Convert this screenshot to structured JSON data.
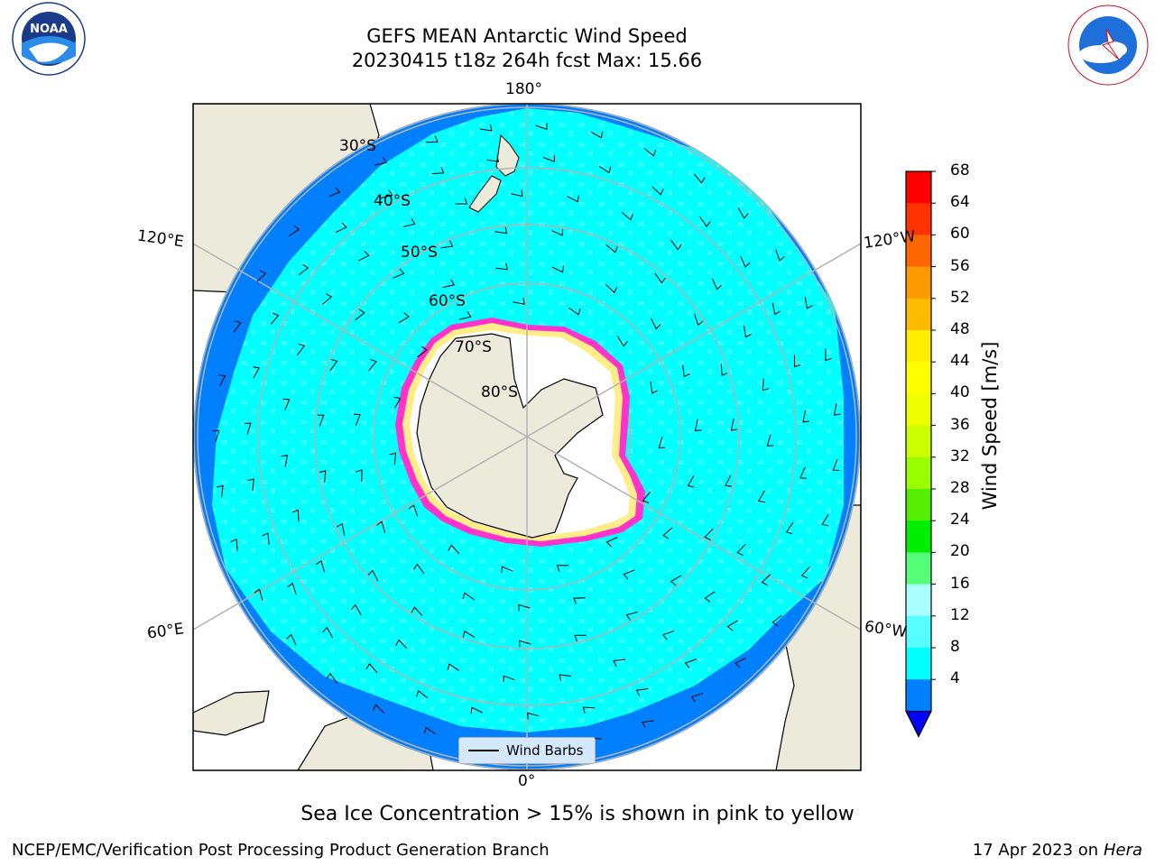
{
  "title": {
    "line1": "GEFS MEAN Antarctic Wind Speed",
    "line2": "20230415 t18z 264h fcst   Max: 15.66"
  },
  "logos": {
    "left": "NOAA",
    "right": "NATIONAL WEATHER SERVICE"
  },
  "map": {
    "projection": "South Polar Stereographic",
    "lon_labels": {
      "top": "180°",
      "bottom": "0°",
      "left_upper": "120°E",
      "left_lower": "60°E",
      "right_upper": "120°W",
      "right_lower": "60°W"
    },
    "lat_labels": [
      "30°S",
      "40°S",
      "50°S",
      "60°S",
      "70°S",
      "80°S"
    ],
    "legend_label": "Wind Barbs",
    "colors": {
      "land": "#ebeadb",
      "ice": "#ffffff",
      "ice_edge": "#ff33cc",
      "ocean_low": "#0080ff",
      "ocean_mid": "#00ffff",
      "ocean_high": "#55ffff",
      "graticule": "#b3b3b3"
    }
  },
  "colorbar": {
    "label": "Wind Speed [m/s]",
    "ticks": [
      "68",
      "64",
      "60",
      "56",
      "52",
      "48",
      "44",
      "40",
      "36",
      "32",
      "28",
      "24",
      "20",
      "16",
      "12",
      "8",
      "4"
    ],
    "colors": [
      "#ff0000",
      "#ff3300",
      "#ff6600",
      "#ff9900",
      "#ffbb00",
      "#ffee00",
      "#ffff00",
      "#eeff00",
      "#ccff00",
      "#99ff00",
      "#55ee00",
      "#00ee00",
      "#55ff77",
      "#aaffff",
      "#55ffff",
      "#00ffff",
      "#0080ff"
    ],
    "extend_color": "#0000ff"
  },
  "footer_note": "Sea Ice Concentration > 15% is shown in pink to yellow",
  "credit_left": "NCEP/EMC/Verification Post Processing Product Generation Branch",
  "credit_right": {
    "date": "17 Apr 2023 on",
    "machine": "Hera"
  }
}
